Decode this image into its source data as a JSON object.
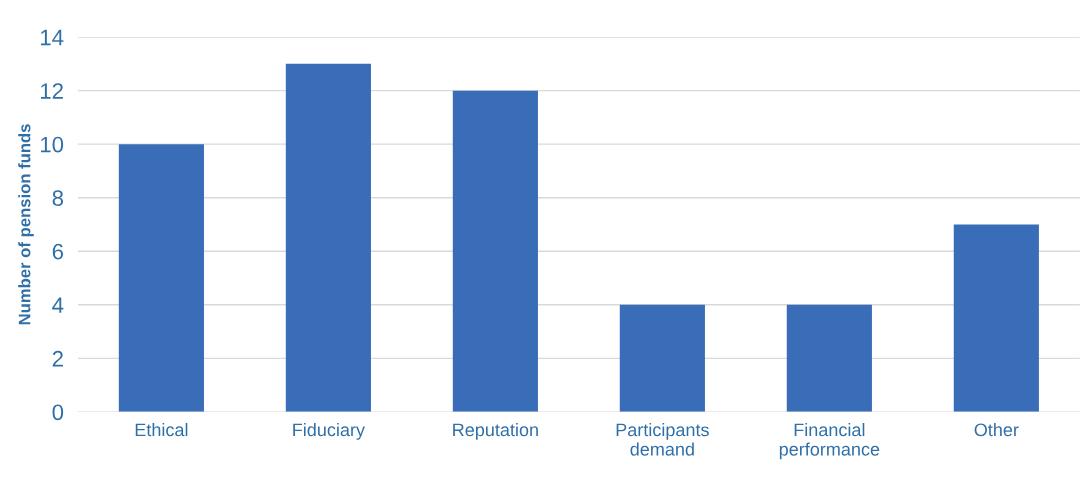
{
  "chart_data": {
    "type": "bar",
    "ylabel": "Number of pension funds",
    "categories": [
      "Ethical",
      "Fiduciary",
      "Reputation",
      "Participants\ndemand",
      "Financial\nperformance",
      "Other"
    ],
    "values": [
      10,
      13,
      12,
      4,
      4,
      7
    ],
    "color": "#3a6db8",
    "ylim": [
      0,
      14
    ],
    "yticks": [
      0,
      2,
      4,
      6,
      8,
      10,
      12,
      14
    ],
    "grid": "y",
    "legend": false
  }
}
